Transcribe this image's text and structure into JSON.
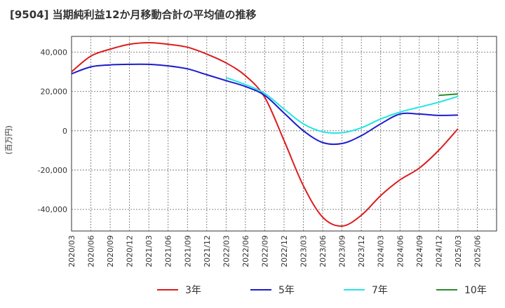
{
  "chart_data": {
    "type": "line",
    "title": "[9504]  当期純利益12か月移動合計の平均値の推移",
    "ylabel": "(百万円)",
    "xlabel": "",
    "x": [
      "2020/03",
      "2020/06",
      "2020/09",
      "2020/12",
      "2021/03",
      "2021/06",
      "2021/09",
      "2021/12",
      "2022/03",
      "2022/06",
      "2022/09",
      "2022/12",
      "2023/03",
      "2023/06",
      "2023/09",
      "2023/12",
      "2024/03",
      "2024/06",
      "2024/09",
      "2024/12",
      "2025/03"
    ],
    "x_ticks": [
      "2020/03",
      "2020/06",
      "2020/09",
      "2020/12",
      "2021/03",
      "2021/06",
      "2021/09",
      "2021/12",
      "2022/03",
      "2022/06",
      "2022/09",
      "2022/12",
      "2023/03",
      "2023/06",
      "2023/09",
      "2023/12",
      "2024/03",
      "2024/06",
      "2024/09",
      "2024/12",
      "2025/03",
      "2025/06"
    ],
    "ylim": [
      -51000,
      48000
    ],
    "y_ticks": [
      -40000,
      -20000,
      0,
      20000,
      40000
    ],
    "y_tick_labels": [
      "-40,000",
      "-20,000",
      "0",
      "20,000",
      "40,000"
    ],
    "grid": true,
    "legend_position": "bottom",
    "series": [
      {
        "name": "3年",
        "color": "#dd1c1c",
        "values": [
          30000,
          38000,
          41500,
          44000,
          44800,
          44000,
          42500,
          39000,
          34500,
          28000,
          17000,
          -5000,
          -28000,
          -44000,
          -48500,
          -43000,
          -33000,
          -25000,
          -19000,
          -10000,
          1000
        ]
      },
      {
        "name": "5年",
        "color": "#1c1ccc",
        "values": [
          29000,
          32500,
          33500,
          33800,
          33800,
          33000,
          31500,
          28500,
          25500,
          22500,
          18000,
          9000,
          0,
          -6000,
          -6500,
          -2500,
          3500,
          8500,
          8500,
          7800,
          8000
        ]
      },
      {
        "name": "7年",
        "color": "#22e5e5",
        "values": [
          null,
          null,
          null,
          null,
          null,
          null,
          null,
          null,
          27000,
          23500,
          19000,
          11000,
          3500,
          -500,
          -1000,
          1500,
          6000,
          9500,
          12000,
          14500,
          17500
        ]
      },
      {
        "name": "10年",
        "color": "#2a8c2a",
        "values": [
          null,
          null,
          null,
          null,
          null,
          null,
          null,
          null,
          null,
          null,
          null,
          null,
          null,
          null,
          null,
          null,
          null,
          null,
          null,
          18000,
          18700
        ]
      }
    ]
  }
}
